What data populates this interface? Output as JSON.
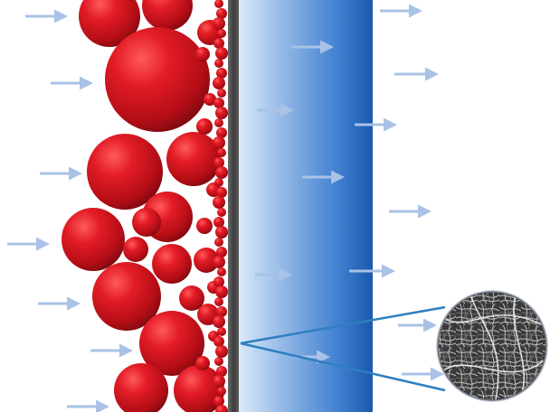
{
  "diagram": {
    "subject": "filtration",
    "colors": {
      "particle": "#c8101c",
      "membrane_light": "#d6e6f7",
      "membrane_dark": "#1f63b8",
      "support_layer": "#4a4a4a",
      "flow_arrow": "#a9c2e6",
      "callout_line": "#2f7fc0",
      "background": "#ffffff"
    },
    "icons": {
      "flow": "arrow-right-icon",
      "particle": "sphere-icon",
      "magnified_view": "fiber-mesh-icon"
    }
  }
}
